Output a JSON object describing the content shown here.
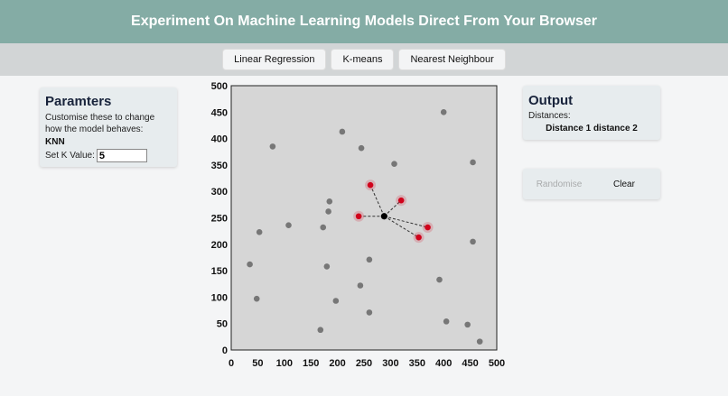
{
  "header": {
    "title": "Experiment On Machine Learning Models Direct From Your Browser"
  },
  "nav": {
    "items": [
      "Linear Regression",
      "K-means",
      "Nearest Neighbour"
    ]
  },
  "params": {
    "title": "Paramters",
    "description": "Customise these to change how the model behaves:",
    "model": "KNN",
    "k_label": "Set K Value:",
    "k_value": "5"
  },
  "output": {
    "title": "Output",
    "distances_label": "Distances:",
    "distances_value": "Distance 1 distance 2"
  },
  "actions": {
    "randomise": "Randomise",
    "clear": "Clear"
  },
  "colors": {
    "header": "#84aca5",
    "point": "#777777",
    "neighbour": "#d0021b",
    "query": "#000000",
    "plot_bg": "#d6d6d6"
  },
  "chart_data": {
    "type": "scatter",
    "xlim": [
      0,
      500
    ],
    "ylim": [
      0,
      500
    ],
    "x_ticks": [
      0,
      50,
      100,
      150,
      200,
      250,
      300,
      350,
      400,
      450,
      500
    ],
    "y_ticks": [
      0,
      50,
      100,
      150,
      200,
      250,
      300,
      350,
      400,
      450,
      500
    ],
    "grid": false,
    "query_point": {
      "x": 288,
      "y": 253
    },
    "neighbours": [
      {
        "x": 262,
        "y": 312
      },
      {
        "x": 320,
        "y": 283
      },
      {
        "x": 240,
        "y": 253
      },
      {
        "x": 370,
        "y": 232
      },
      {
        "x": 353,
        "y": 213
      }
    ],
    "points": [
      {
        "x": 78,
        "y": 385
      },
      {
        "x": 209,
        "y": 413
      },
      {
        "x": 245,
        "y": 382
      },
      {
        "x": 400,
        "y": 450
      },
      {
        "x": 455,
        "y": 355
      },
      {
        "x": 307,
        "y": 352
      },
      {
        "x": 185,
        "y": 281
      },
      {
        "x": 183,
        "y": 262
      },
      {
        "x": 108,
        "y": 236
      },
      {
        "x": 173,
        "y": 232
      },
      {
        "x": 53,
        "y": 223
      },
      {
        "x": 455,
        "y": 205
      },
      {
        "x": 35,
        "y": 162
      },
      {
        "x": 260,
        "y": 171
      },
      {
        "x": 180,
        "y": 158
      },
      {
        "x": 392,
        "y": 133
      },
      {
        "x": 243,
        "y": 122
      },
      {
        "x": 48,
        "y": 97
      },
      {
        "x": 197,
        "y": 93
      },
      {
        "x": 260,
        "y": 71
      },
      {
        "x": 405,
        "y": 54
      },
      {
        "x": 445,
        "y": 48
      },
      {
        "x": 168,
        "y": 38
      },
      {
        "x": 468,
        "y": 16
      }
    ]
  }
}
